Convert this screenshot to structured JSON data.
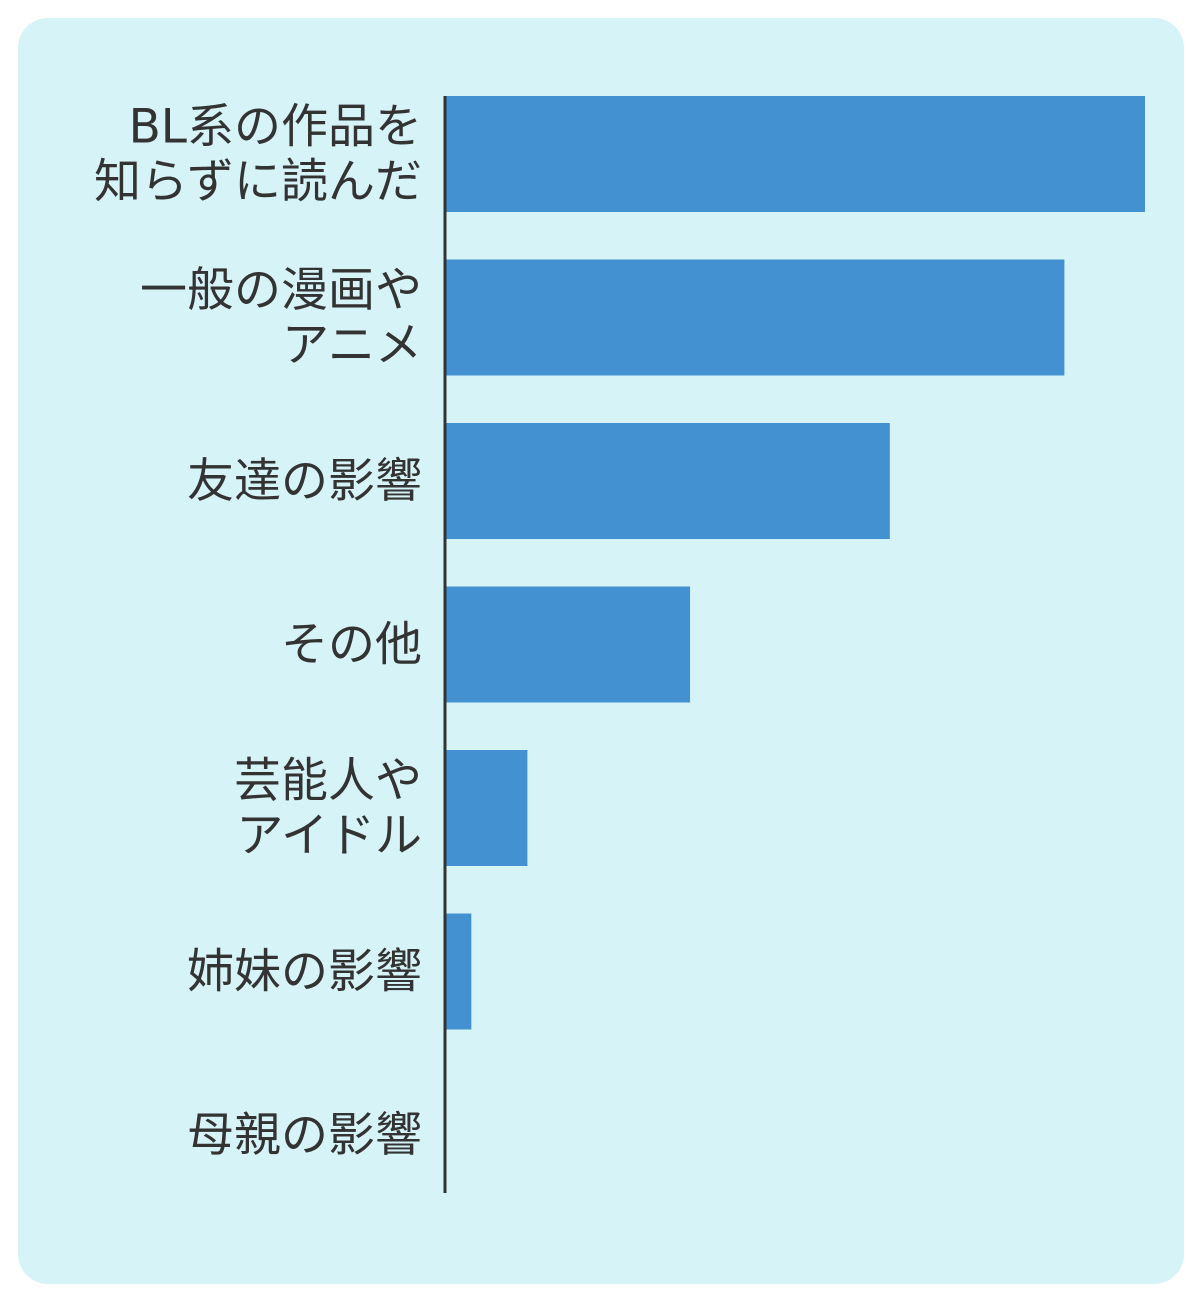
{
  "colors": {
    "panel_background": "#d6f3f8",
    "bar": "#4391d0",
    "axis": "#333333",
    "label_text": "#333333"
  },
  "chart_data": {
    "type": "bar",
    "orientation": "horizontal",
    "title": "",
    "xlabel": "",
    "ylabel": "",
    "categories": [
      [
        "BL系の作品を",
        "知らずに読んだ"
      ],
      [
        "一般の漫画や",
        "アニメ"
      ],
      [
        "友達の影響"
      ],
      [
        "その他"
      ],
      [
        "芸能人や",
        "アイドル"
      ],
      [
        "姉妹の影響"
      ],
      [
        "母親の影響"
      ]
    ],
    "values": [
      100,
      88.5,
      63.6,
      35.1,
      11.9,
      3.9,
      0
    ],
    "xlim": [
      0,
      100
    ],
    "grid": false,
    "legend": "none"
  }
}
